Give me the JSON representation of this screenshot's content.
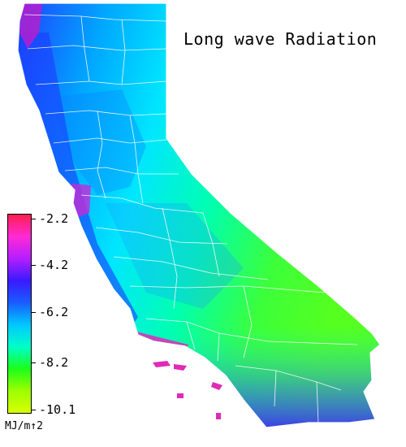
{
  "map": {
    "title": "Long wave Radiation",
    "region": "California",
    "colors": {
      "coast_low": "#1a3cff",
      "mid": "#00e1ff",
      "high_inland": "#33ff1a",
      "north_peak": "#b41ecf",
      "boundary": "#ffffff"
    }
  },
  "legend": {
    "units": "MJ/m↑2",
    "ticks": [
      "-2.2",
      "-4.2",
      "-6.2",
      "-8.2",
      "-10.1"
    ],
    "gradient": [
      "#ff1f4f",
      "#ff2ad5",
      "#b41eff",
      "#3a1aff",
      "#1a5cff",
      "#00c8ff",
      "#00ffc8",
      "#1aff1a",
      "#9cff00",
      "#d8ff00"
    ]
  }
}
